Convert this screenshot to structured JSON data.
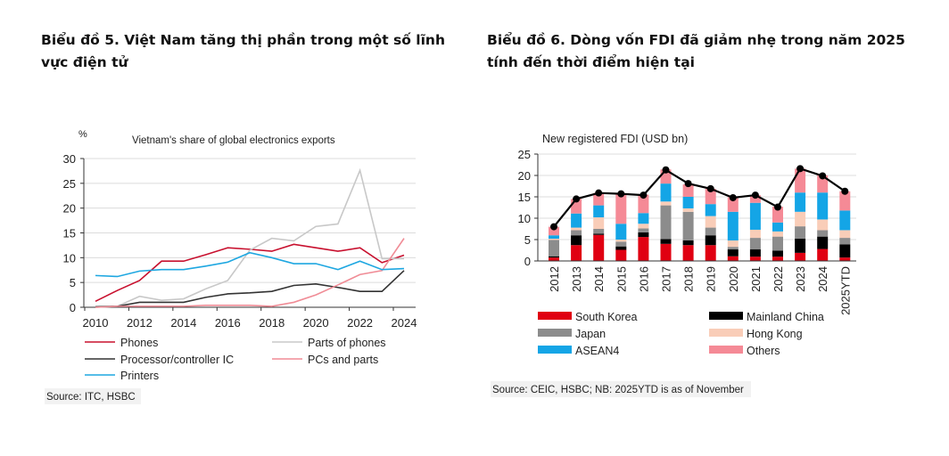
{
  "left_title": "Biểu đồ 5. Việt Nam tăng thị phần trong một số lĩnh vực điện tử",
  "right_title": "Biểu đồ 6. Dòng vốn FDI đã giảm nhẹ trong năm 2025 tính đến thời điểm hiện tại",
  "chart_data": [
    {
      "type": "line",
      "title": "Vietnam's share of global electronics exports",
      "ylabel": "%",
      "xlabel": "",
      "ylim": [
        0,
        30
      ],
      "yticks": [
        "0",
        "5",
        "10",
        "15",
        "20",
        "25",
        "30"
      ],
      "xticks": [
        "2010",
        "2012",
        "2014",
        "2016",
        "2018",
        "2020",
        "2022",
        "2024"
      ],
      "grid": true,
      "legend": "bottom",
      "x": [
        2010,
        2011,
        2012,
        2013,
        2014,
        2015,
        2016,
        2017,
        2018,
        2019,
        2020,
        2021,
        2022,
        2023,
        2024
      ],
      "series": [
        {
          "name": "Phones",
          "color": "#c8102e",
          "values": [
            1.2,
            3.4,
            5.4,
            9.3,
            9.3,
            10.6,
            12.0,
            11.7,
            11.3,
            12.7,
            12.0,
            11.3,
            12.0,
            9.0,
            10.5
          ]
        },
        {
          "name": "Parts of phones",
          "color": "#c8c8c8",
          "values": [
            0,
            0.2,
            2.2,
            1.4,
            1.7,
            3.7,
            5.4,
            11.5,
            13.9,
            13.4,
            16.3,
            16.8,
            27.6,
            9.8,
            9.8
          ]
        },
        {
          "name": "Processor/controller IC",
          "color": "#333333",
          "values": [
            0.1,
            0.2,
            1.0,
            1.0,
            1.0,
            2.0,
            2.7,
            2.9,
            3.2,
            4.4,
            4.7,
            4.0,
            3.2,
            3.2,
            7.4
          ]
        },
        {
          "name": "PCs and parts",
          "color": "#f08c96",
          "values": [
            0,
            0.2,
            0.2,
            0.2,
            0.2,
            0.4,
            0.4,
            0.4,
            0.2,
            1.0,
            2.5,
            4.5,
            6.6,
            7.4,
            13.9
          ]
        },
        {
          "name": "Printers",
          "color": "#1ea7e1",
          "values": [
            6.4,
            6.2,
            7.3,
            7.6,
            7.6,
            8.3,
            9.1,
            11.0,
            10.0,
            8.8,
            8.8,
            7.6,
            9.3,
            7.6,
            7.8
          ]
        }
      ],
      "source": "Source: ITC, HSBC"
    },
    {
      "type": "bar",
      "stacked": true,
      "title": "New registered FDI  (USD bn)",
      "ylim": [
        0,
        25
      ],
      "yticks": [
        "0",
        "5",
        "10",
        "15",
        "20",
        "25"
      ],
      "grid": true,
      "legend": "bottom",
      "categories": [
        "2012",
        "2013",
        "2014",
        "2015",
        "2016",
        "2017",
        "2018",
        "2019",
        "2020",
        "2021",
        "2022",
        "2023",
        "2024",
        "2025YTD"
      ],
      "series": [
        {
          "name": "South Korea",
          "color": "#e00012",
          "values": [
            0.8,
            3.7,
            6.1,
            2.6,
            5.6,
            4.0,
            3.7,
            3.7,
            1.1,
            1.0,
            1.0,
            1.9,
            2.8,
            0.8
          ]
        },
        {
          "name": "Mainland China",
          "color": "#000000",
          "values": [
            0.3,
            2.3,
            0.3,
            0.8,
            1.1,
            1.1,
            1.1,
            2.3,
            1.6,
            1.7,
            1.4,
            3.3,
            2.9,
            3.1
          ]
        },
        {
          "name": "Japan",
          "color": "#8c8c8c",
          "values": [
            3.8,
            1.2,
            1.1,
            1.1,
            0.9,
            7.9,
            6.7,
            1.8,
            0.6,
            2.7,
            3.3,
            2.9,
            1.5,
            1.5
          ]
        },
        {
          "name": "Hong Kong",
          "color": "#f9cdb8",
          "values": [
            0.3,
            0.6,
            2.7,
            0.5,
            1.1,
            0.9,
            0.8,
            2.7,
            1.5,
            1.9,
            1.2,
            3.4,
            2.5,
            1.8
          ]
        },
        {
          "name": "ASEAN4",
          "color": "#14a5e6",
          "values": [
            0.8,
            3.3,
            2.8,
            3.7,
            2.5,
            4.2,
            2.7,
            2.8,
            6.7,
            6.3,
            2.1,
            4.5,
            6.3,
            4.6
          ]
        },
        {
          "name": "Others",
          "color": "#f58a96",
          "values": [
            2.0,
            3.4,
            2.9,
            6.9,
            4.3,
            3.3,
            2.9,
            3.6,
            3.4,
            1.8,
            3.7,
            5.6,
            4.0,
            4.5
          ]
        }
      ],
      "total_line": {
        "color": "#000000",
        "values": [
          8.0,
          14.5,
          15.9,
          15.7,
          15.4,
          21.3,
          18.1,
          16.9,
          14.8,
          15.4,
          12.6,
          21.6,
          19.9,
          16.3
        ]
      },
      "source": "Source: CEIC, HSBC; NB: 2025YTD is as of November"
    }
  ]
}
